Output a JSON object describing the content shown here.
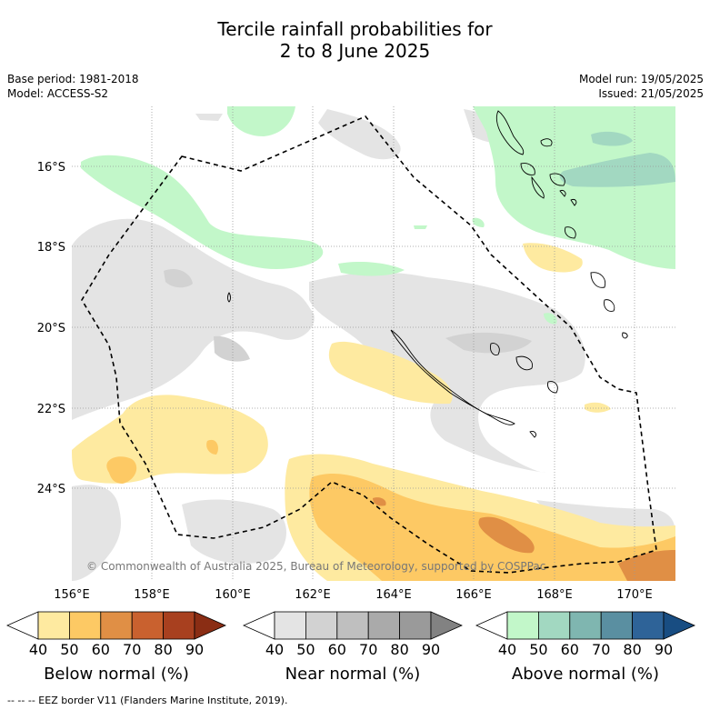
{
  "header": {
    "title_line1": "Tercile rainfall probabilities for",
    "title_line2": "2 to 8 June 2025",
    "base_period": "Base period: 1981-2018",
    "model": "Model: ACCESS-S2",
    "model_run": "Model run: 19/05/2025",
    "issued": "Issued: 21/05/2025"
  },
  "map": {
    "lat_labels": [
      "16°S",
      "18°S",
      "20°S",
      "22°S",
      "24°S"
    ],
    "lon_labels": [
      "156°E",
      "158°E",
      "160°E",
      "162°E",
      "164°E",
      "166°E",
      "168°E",
      "170°E"
    ],
    "copyright": "© Commonwealth of Australia 2025, Bureau of Meteorology, supported by COSPPac",
    "grid": true
  },
  "colorbars": [
    {
      "label": "Below normal (%)",
      "ticks": [
        "40",
        "50",
        "60",
        "70",
        "80",
        "90"
      ],
      "colors": [
        "#ffffff",
        "#feeaa0",
        "#fdc964",
        "#e08f45",
        "#c9612f",
        "#a8401f",
        "#8a2d14"
      ]
    },
    {
      "label": "Near normal (%)",
      "ticks": [
        "40",
        "50",
        "60",
        "70",
        "80",
        "90"
      ],
      "colors": [
        "#ffffff",
        "#e4e4e4",
        "#d2d2d2",
        "#bfbfbf",
        "#aaaaaa",
        "#9a9a9a",
        "#828282"
      ]
    },
    {
      "label": "Above normal (%)",
      "ticks": [
        "40",
        "50",
        "60",
        "70",
        "80",
        "90"
      ],
      "colors": [
        "#ffffff",
        "#c2f7c9",
        "#a2d8c1",
        "#7fb6b0",
        "#5a8fa1",
        "#2e6398",
        "#184d82"
      ]
    }
  ],
  "footer": {
    "legend_text": "-- -- -- EEZ border V11 (Flanders Marine Institute, 2019)."
  }
}
